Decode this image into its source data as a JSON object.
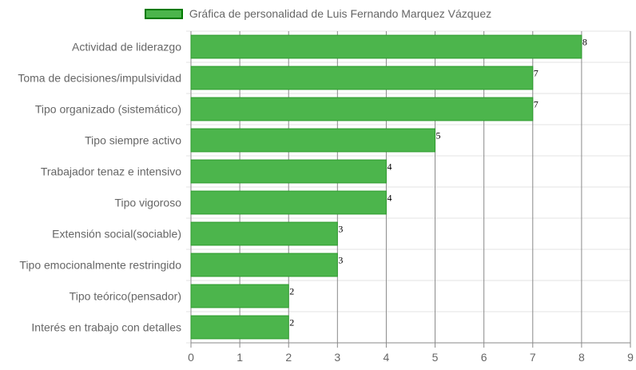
{
  "chart_data": {
    "type": "bar",
    "orientation": "horizontal",
    "categories": [
      "Actividad de liderazgo",
      "Toma de decisiones/impulsividad",
      "Tipo organizado (sistemático)",
      "Tipo siempre activo",
      "Trabajador tenaz e intensivo",
      "Tipo vigoroso",
      "Extensión social(sociable)",
      "Tipo emocionalmente restringido",
      "Tipo teórico(pensador)",
      "Interés en trabajo con detalles"
    ],
    "series": [
      {
        "name": "Gráfica de personalidad de Luis Fernando Marquez Vázquez",
        "values": [
          8,
          7,
          7,
          5,
          4,
          4,
          3,
          3,
          2,
          2
        ]
      }
    ],
    "xlim": [
      0,
      9
    ],
    "x_ticks": [
      "0",
      "1",
      "2",
      "3",
      "4",
      "5",
      "6",
      "7",
      "8",
      "9"
    ],
    "xlabel": "",
    "ylabel": "",
    "grid": true,
    "legend_position": "top",
    "data_labels": true,
    "colors": {
      "bar_fill": "#4cb54c",
      "bar_border": "#2e9b2e",
      "legend_border": "#007a00",
      "grid": "#e3e3e3",
      "axis_grid": "#8a8a8a"
    }
  }
}
